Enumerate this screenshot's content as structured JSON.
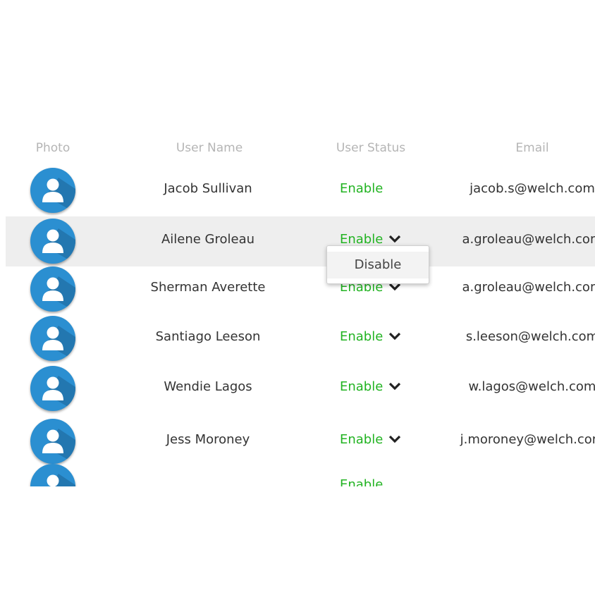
{
  "table": {
    "headers": {
      "photo": "Photo",
      "user_name": "User Name",
      "user_status": "User Status",
      "email": "Email"
    },
    "rows": [
      {
        "name": "Jacob Sullivan",
        "status": "Enable",
        "email": "jacob.s@welch.com",
        "has_dropdown": false
      },
      {
        "name": "Ailene Groleau",
        "status": "Enable",
        "email": "a.groleau@welch.com",
        "has_dropdown": true,
        "highlighted": true
      },
      {
        "name": "Sherman Averette",
        "status": "Enable",
        "email": "a.groleau@welch.com",
        "has_dropdown": true
      },
      {
        "name": "Santiago Leeson",
        "status": "Enable",
        "email": "s.leeson@welch.com",
        "has_dropdown": true
      },
      {
        "name": "Wendie Lagos",
        "status": "Enable",
        "email": "w.lagos@welch.com",
        "has_dropdown": true
      },
      {
        "name": "Jess Moroney",
        "status": "Enable",
        "email": "j.moroney@welch.com",
        "has_dropdown": true
      },
      {
        "name": "",
        "status": "Enable",
        "email": "",
        "has_dropdown": false
      }
    ]
  },
  "status_menu": {
    "options": [
      "Disable"
    ]
  },
  "colors": {
    "enable_green": "#22b322",
    "avatar_blue": "#2b8fd1",
    "highlight_row": "#eeeeee"
  }
}
